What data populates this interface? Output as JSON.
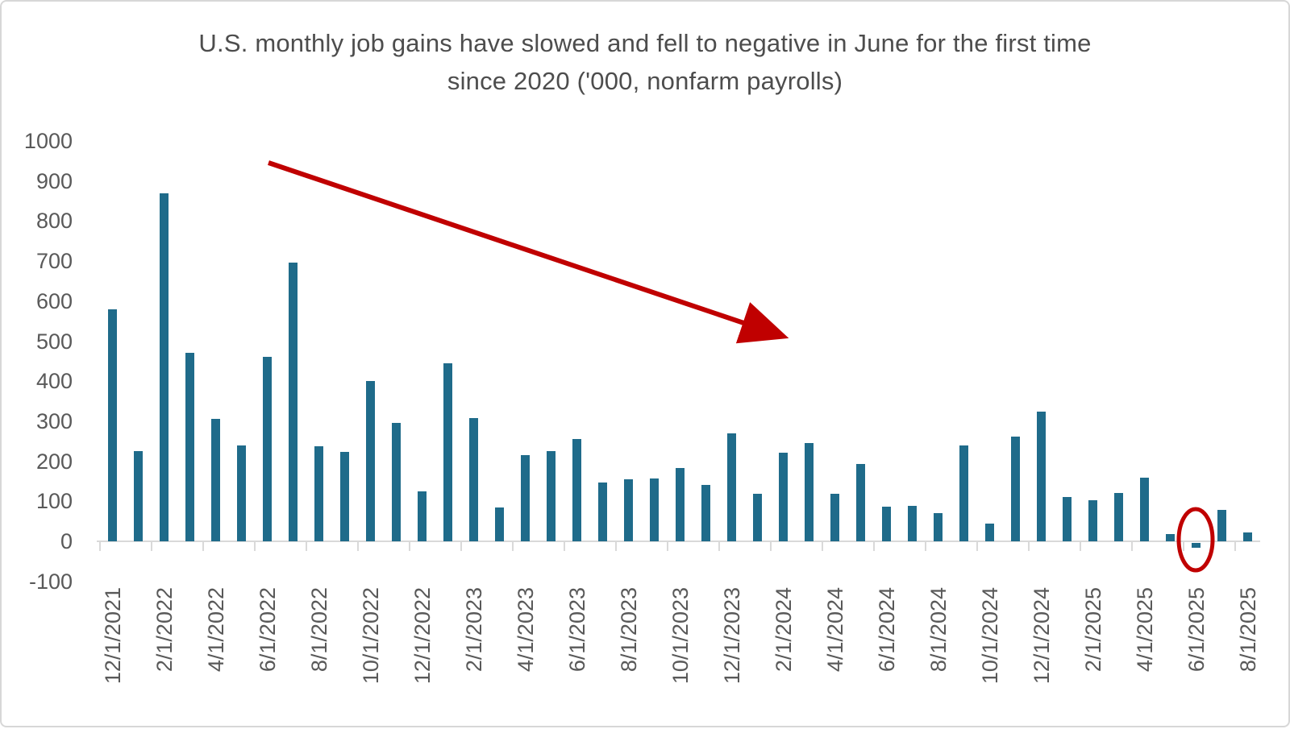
{
  "title": {
    "line1": "U.S. monthly job gains have slowed and fell to negative in June for the first time",
    "line2": "since 2020 ('000, nonfarm payrolls)",
    "text": "U.S. monthly job gains have slowed and fell to negative in June for the first time since 2020 ('000, nonfarm payrolls)"
  },
  "colors": {
    "bar": "#1f6b8a",
    "annotation_red": "#c00000",
    "axis_text": "#595959",
    "title_text": "#4d4d4d",
    "axis_line": "#d9d9d9",
    "background": "#ffffff"
  },
  "chart_data": {
    "type": "bar",
    "title": "U.S. monthly job gains have slowed and fell to negative in June for the first time since 2020 ('000, nonfarm payrolls)",
    "unit": "thousands of jobs (nonfarm payrolls)",
    "xlabel": "",
    "ylabel": "",
    "ylim": [
      -100,
      1000
    ],
    "yticks": [
      1000,
      900,
      800,
      700,
      600,
      500,
      400,
      300,
      200,
      100,
      0,
      -100
    ],
    "grid": false,
    "legend": "none",
    "x_tick_every": 2,
    "x": [
      "12/1/2021",
      "1/1/2022",
      "2/1/2022",
      "3/1/2022",
      "4/1/2022",
      "5/1/2022",
      "6/1/2022",
      "7/1/2022",
      "8/1/2022",
      "9/1/2022",
      "10/1/2022",
      "11/1/2022",
      "12/1/2022",
      "1/1/2023",
      "2/1/2023",
      "3/1/2023",
      "4/1/2023",
      "5/1/2023",
      "6/1/2023",
      "7/1/2023",
      "8/1/2023",
      "9/1/2023",
      "10/1/2023",
      "11/1/2023",
      "12/1/2023",
      "1/1/2024",
      "2/1/2024",
      "3/1/2024",
      "4/1/2024",
      "5/1/2024",
      "6/1/2024",
      "7/1/2024",
      "8/1/2024",
      "9/1/2024",
      "10/1/2024",
      "11/1/2024",
      "12/1/2024",
      "1/1/2025",
      "2/1/2025",
      "3/1/2025",
      "4/1/2025",
      "5/1/2025",
      "6/1/2025",
      "7/1/2025",
      "8/1/2025"
    ],
    "values": [
      580,
      225,
      870,
      470,
      305,
      240,
      460,
      697,
      237,
      223,
      400,
      295,
      125,
      444,
      307,
      85,
      216,
      225,
      255,
      147,
      155,
      157,
      184,
      140,
      269,
      119,
      222,
      246,
      118,
      193,
      87,
      88,
      71,
      240,
      44,
      261,
      323,
      111,
      102,
      120,
      158,
      19,
      -13,
      79,
      22
    ],
    "annotations": [
      {
        "type": "arrow",
        "description": "downward trend arrow across the chart",
        "color": "#c00000"
      },
      {
        "type": "ellipse",
        "description": "red circle highlighting the negative bar at 6/1/2025",
        "target_category": "6/1/2025",
        "color": "#c00000"
      }
    ]
  }
}
